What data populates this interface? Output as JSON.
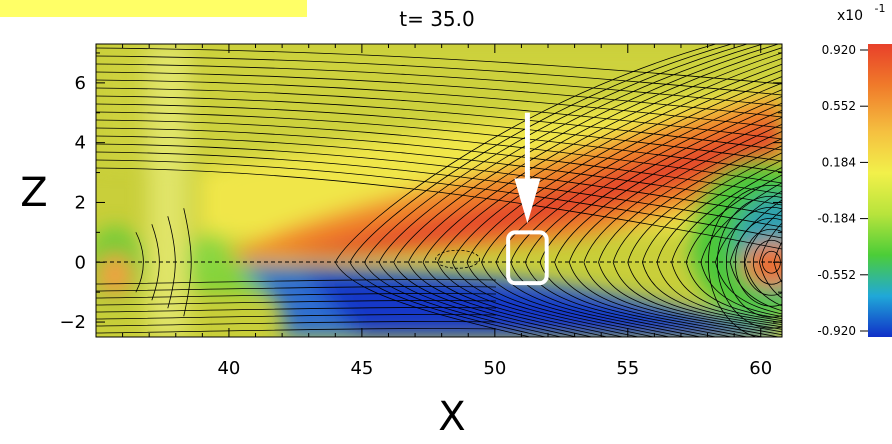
{
  "title": "t=   35.0",
  "chart_data": {
    "type": "heatmap",
    "title": "t=   35.0",
    "xlabel": "X",
    "ylabel": "Z",
    "xlim": [
      35.0,
      60.8
    ],
    "ylim": [
      -2.5,
      7.3
    ],
    "x_ticks": [
      40,
      45,
      50,
      55,
      60
    ],
    "y_ticks": [
      -2,
      0,
      2,
      4,
      6
    ],
    "colorbar": {
      "scale_label": "x10",
      "scale_exponent": "-1",
      "ticks": [
        "0.920",
        "0.552",
        "0.184",
        "-0.184",
        "-0.552",
        "-0.920"
      ],
      "range": [
        -0.92,
        0.92
      ],
      "colors": [
        "#e8402a",
        "#f07a2a",
        "#f5c040",
        "#f2f04a",
        "#b8e43c",
        "#4ccd38",
        "#20a8d8",
        "#1030c8"
      ]
    },
    "annotations": {
      "arrow_target": [
        51.2,
        0.05
      ],
      "highlight_box": {
        "x": [
          50.5,
          51.95
        ],
        "z": [
          -0.7,
          1.0
        ]
      }
    }
  }
}
